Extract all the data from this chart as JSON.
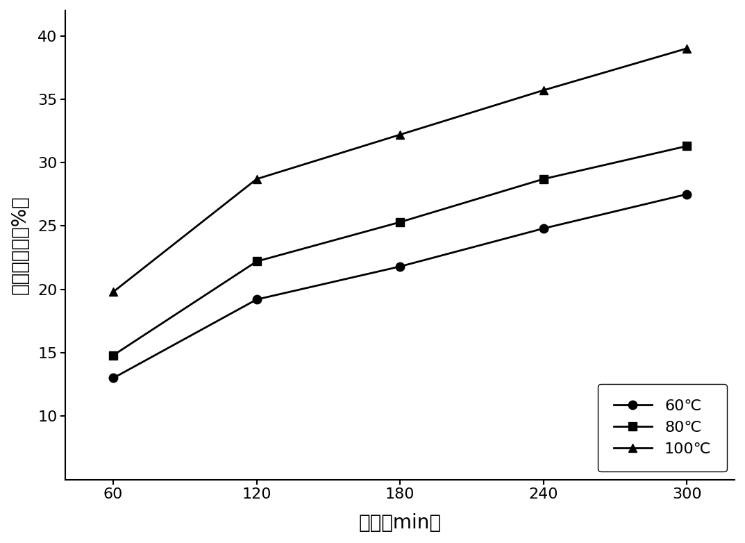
{
  "x": [
    60,
    120,
    180,
    240,
    300
  ],
  "series": [
    {
      "label": "60℃",
      "values": [
        13.0,
        19.2,
        21.8,
        24.8,
        27.5
      ],
      "marker": "o"
    },
    {
      "label": "80℃",
      "values": [
        14.8,
        22.2,
        25.3,
        28.7,
        31.3
      ],
      "marker": "s"
    },
    {
      "label": "100℃",
      "values": [
        19.8,
        28.7,
        32.2,
        35.7,
        39.0
      ],
      "marker": "^"
    }
  ],
  "xlabel": "时间（min）",
  "ylabel": "多糖提取率（%）",
  "xlim": [
    40,
    320
  ],
  "ylim": [
    5,
    42
  ],
  "xticks": [
    60,
    120,
    180,
    240,
    300
  ],
  "yticks": [
    10,
    15,
    20,
    25,
    30,
    35,
    40
  ],
  "line_color": "#000000",
  "background_color": "#ffffff",
  "linewidth": 2.0,
  "markersize": 9,
  "legend_fontsize": 16,
  "axis_label_fontsize": 20,
  "tick_fontsize": 16
}
